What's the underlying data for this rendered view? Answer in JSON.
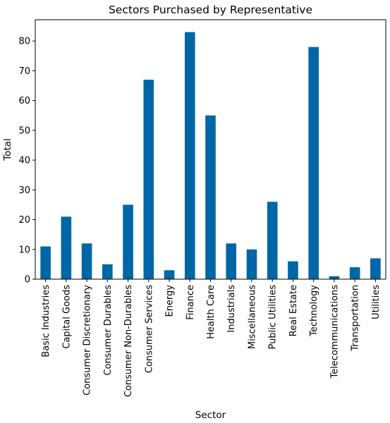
{
  "chart_data": {
    "type": "bar",
    "title": "Sectors Purchased by Representative",
    "xlabel": "Sector",
    "ylabel": "Total",
    "categories": [
      "Basic Industries",
      "Capital Goods",
      "Consumer Discretionary",
      "Consumer Durables",
      "Consumer Non-Durables",
      "Consumer Services",
      "Energy",
      "Finance",
      "Health Care",
      "Industrials",
      "Miscellaneous",
      "Public Utilities",
      "Real Estate",
      "Technology",
      "Telecommunications",
      "Transportation",
      "Utilities"
    ],
    "values": [
      11,
      21,
      12,
      5,
      25,
      67,
      3,
      83,
      55,
      12,
      10,
      26,
      6,
      78,
      1,
      4,
      7
    ],
    "ylim": [
      0,
      87.15
    ],
    "yticks": [
      0,
      10,
      20,
      30,
      40,
      50,
      60,
      70,
      80
    ],
    "grid": false,
    "legend": "none",
    "bar_color": "#0066a5"
  }
}
